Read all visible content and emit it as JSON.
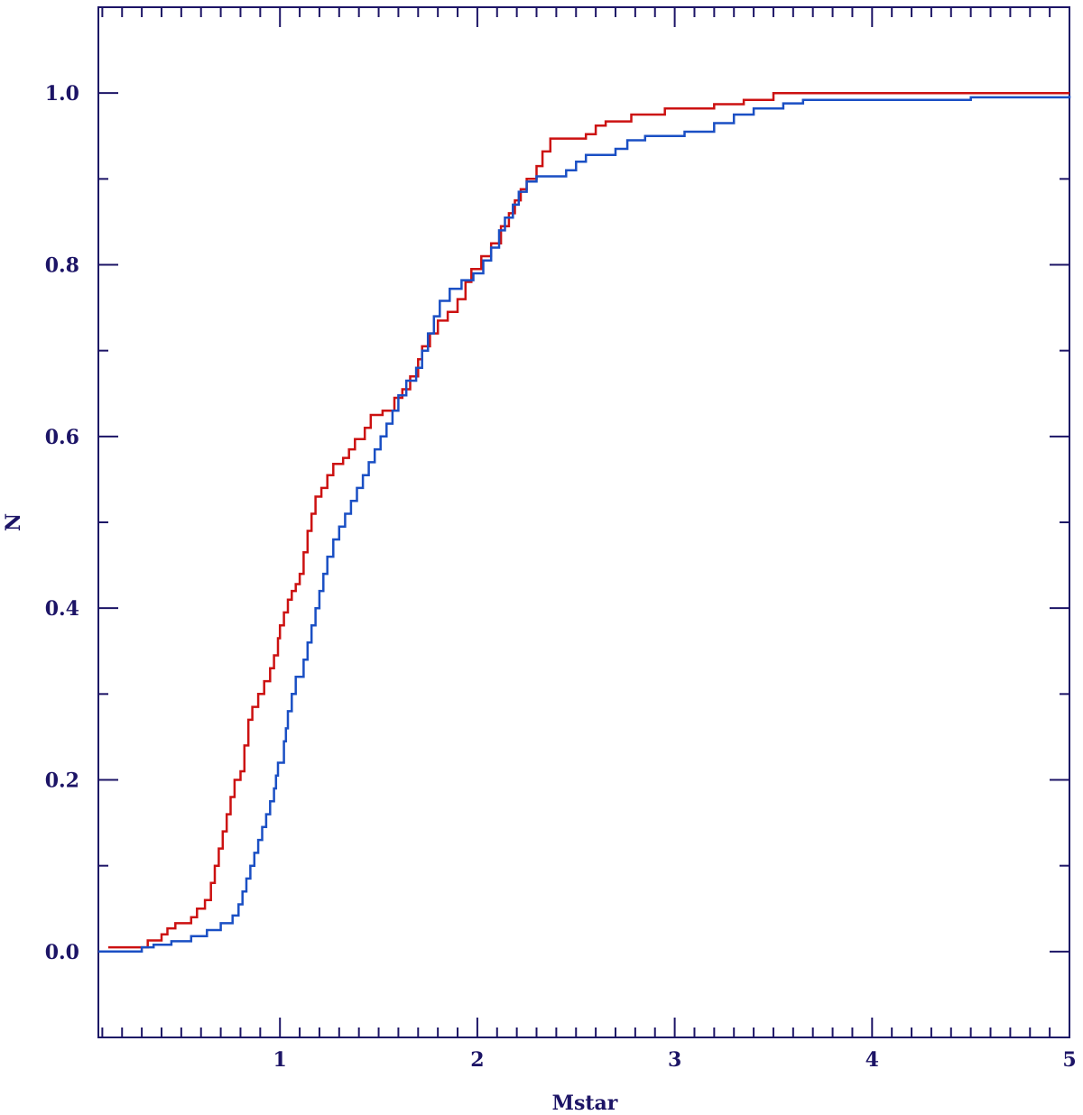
{
  "chart_data": {
    "type": "line",
    "title": "",
    "xlabel": "Mstar",
    "ylabel": "N",
    "xlim": [
      0.08,
      5.0
    ],
    "ylim": [
      -0.1,
      1.1
    ],
    "x_ticks": [
      1,
      2,
      3,
      4,
      5
    ],
    "x_tick_labels": [
      "1",
      "2",
      "3",
      "4",
      "5"
    ],
    "y_ticks": [
      0.0,
      0.2,
      0.4,
      0.6,
      0.8,
      1.0
    ],
    "y_tick_labels": [
      "0.0",
      "0.2",
      "0.4",
      "0.6",
      "0.8",
      "1.0"
    ],
    "grid": false,
    "axis_color": "#1c1466",
    "series": [
      {
        "color": "#cc1111",
        "step": true,
        "points": [
          [
            0.13,
            0.005
          ],
          [
            0.33,
            0.013
          ],
          [
            0.4,
            0.02
          ],
          [
            0.43,
            0.027
          ],
          [
            0.47,
            0.033
          ],
          [
            0.55,
            0.04
          ],
          [
            0.58,
            0.05
          ],
          [
            0.62,
            0.06
          ],
          [
            0.65,
            0.08
          ],
          [
            0.67,
            0.1
          ],
          [
            0.69,
            0.12
          ],
          [
            0.71,
            0.14
          ],
          [
            0.73,
            0.16
          ],
          [
            0.75,
            0.18
          ],
          [
            0.77,
            0.2
          ],
          [
            0.8,
            0.21
          ],
          [
            0.82,
            0.24
          ],
          [
            0.84,
            0.27
          ],
          [
            0.86,
            0.285
          ],
          [
            0.89,
            0.3
          ],
          [
            0.92,
            0.315
          ],
          [
            0.95,
            0.33
          ],
          [
            0.97,
            0.345
          ],
          [
            0.99,
            0.365
          ],
          [
            1.0,
            0.38
          ],
          [
            1.02,
            0.395
          ],
          [
            1.04,
            0.41
          ],
          [
            1.06,
            0.42
          ],
          [
            1.08,
            0.428
          ],
          [
            1.1,
            0.44
          ],
          [
            1.12,
            0.465
          ],
          [
            1.14,
            0.49
          ],
          [
            1.16,
            0.51
          ],
          [
            1.18,
            0.53
          ],
          [
            1.21,
            0.54
          ],
          [
            1.24,
            0.555
          ],
          [
            1.27,
            0.568
          ],
          [
            1.32,
            0.575
          ],
          [
            1.35,
            0.585
          ],
          [
            1.38,
            0.597
          ],
          [
            1.43,
            0.61
          ],
          [
            1.46,
            0.625
          ],
          [
            1.52,
            0.63
          ],
          [
            1.58,
            0.645
          ],
          [
            1.62,
            0.655
          ],
          [
            1.66,
            0.67
          ],
          [
            1.7,
            0.69
          ],
          [
            1.72,
            0.705
          ],
          [
            1.76,
            0.72
          ],
          [
            1.8,
            0.735
          ],
          [
            1.85,
            0.745
          ],
          [
            1.9,
            0.76
          ],
          [
            1.94,
            0.78
          ],
          [
            1.97,
            0.795
          ],
          [
            2.02,
            0.81
          ],
          [
            2.07,
            0.825
          ],
          [
            2.12,
            0.845
          ],
          [
            2.16,
            0.86
          ],
          [
            2.19,
            0.875
          ],
          [
            2.22,
            0.888
          ],
          [
            2.25,
            0.9
          ],
          [
            2.3,
            0.915
          ],
          [
            2.33,
            0.932
          ],
          [
            2.37,
            0.947
          ],
          [
            2.55,
            0.952
          ],
          [
            2.6,
            0.962
          ],
          [
            2.65,
            0.967
          ],
          [
            2.78,
            0.975
          ],
          [
            2.95,
            0.982
          ],
          [
            3.2,
            0.987
          ],
          [
            3.35,
            0.992
          ],
          [
            3.5,
            1.0
          ],
          [
            5.0,
            1.0
          ]
        ]
      },
      {
        "color": "#1a4fc4",
        "step": true,
        "points": [
          [
            0.08,
            0.0
          ],
          [
            0.3,
            0.005
          ],
          [
            0.36,
            0.008
          ],
          [
            0.45,
            0.012
          ],
          [
            0.55,
            0.018
          ],
          [
            0.63,
            0.025
          ],
          [
            0.7,
            0.033
          ],
          [
            0.76,
            0.042
          ],
          [
            0.79,
            0.055
          ],
          [
            0.81,
            0.07
          ],
          [
            0.83,
            0.085
          ],
          [
            0.85,
            0.1
          ],
          [
            0.87,
            0.115
          ],
          [
            0.89,
            0.13
          ],
          [
            0.91,
            0.145
          ],
          [
            0.93,
            0.16
          ],
          [
            0.95,
            0.175
          ],
          [
            0.97,
            0.19
          ],
          [
            0.98,
            0.205
          ],
          [
            0.99,
            0.22
          ],
          [
            1.02,
            0.245
          ],
          [
            1.03,
            0.26
          ],
          [
            1.04,
            0.28
          ],
          [
            1.06,
            0.3
          ],
          [
            1.08,
            0.32
          ],
          [
            1.12,
            0.34
          ],
          [
            1.14,
            0.36
          ],
          [
            1.16,
            0.38
          ],
          [
            1.18,
            0.4
          ],
          [
            1.2,
            0.42
          ],
          [
            1.22,
            0.44
          ],
          [
            1.24,
            0.46
          ],
          [
            1.27,
            0.48
          ],
          [
            1.3,
            0.495
          ],
          [
            1.33,
            0.51
          ],
          [
            1.36,
            0.525
          ],
          [
            1.39,
            0.54
          ],
          [
            1.42,
            0.555
          ],
          [
            1.45,
            0.57
          ],
          [
            1.48,
            0.585
          ],
          [
            1.51,
            0.6
          ],
          [
            1.54,
            0.615
          ],
          [
            1.57,
            0.63
          ],
          [
            1.6,
            0.648
          ],
          [
            1.64,
            0.665
          ],
          [
            1.69,
            0.68
          ],
          [
            1.72,
            0.7
          ],
          [
            1.75,
            0.72
          ],
          [
            1.78,
            0.74
          ],
          [
            1.81,
            0.758
          ],
          [
            1.86,
            0.772
          ],
          [
            1.92,
            0.782
          ],
          [
            1.98,
            0.79
          ],
          [
            2.03,
            0.805
          ],
          [
            2.07,
            0.82
          ],
          [
            2.11,
            0.84
          ],
          [
            2.14,
            0.855
          ],
          [
            2.18,
            0.87
          ],
          [
            2.21,
            0.885
          ],
          [
            2.25,
            0.897
          ],
          [
            2.3,
            0.903
          ],
          [
            2.45,
            0.91
          ],
          [
            2.5,
            0.92
          ],
          [
            2.55,
            0.928
          ],
          [
            2.7,
            0.935
          ],
          [
            2.76,
            0.945
          ],
          [
            2.85,
            0.95
          ],
          [
            3.05,
            0.955
          ],
          [
            3.2,
            0.965
          ],
          [
            3.3,
            0.975
          ],
          [
            3.4,
            0.982
          ],
          [
            3.55,
            0.988
          ],
          [
            3.65,
            0.992
          ],
          [
            4.5,
            0.995
          ],
          [
            5.0,
            0.997
          ]
        ]
      }
    ]
  }
}
